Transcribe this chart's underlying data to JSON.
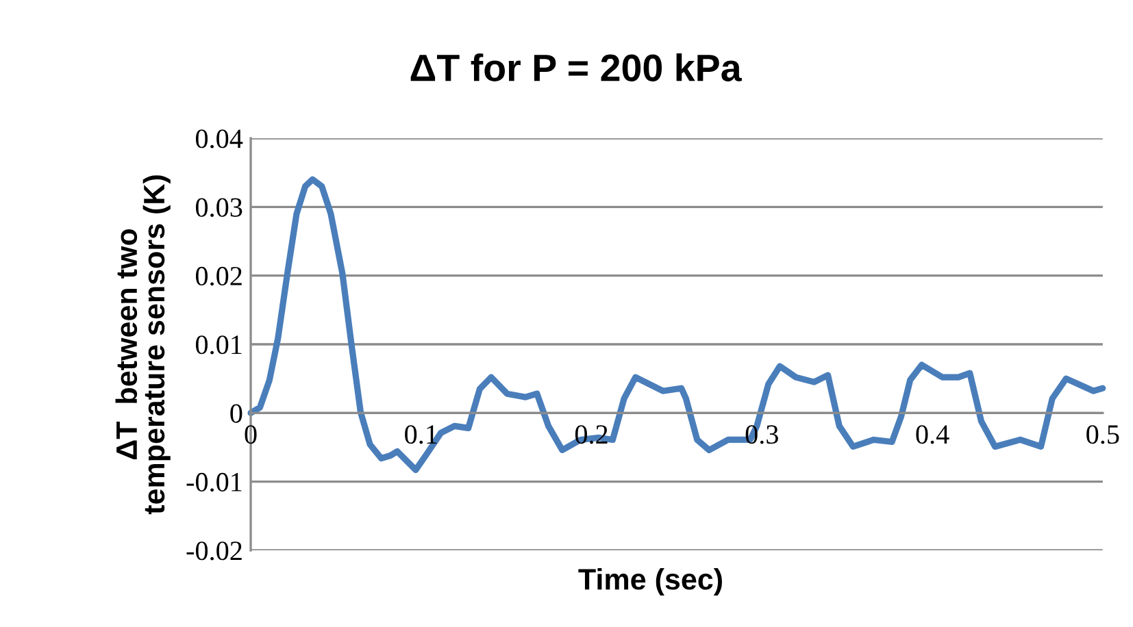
{
  "chart_data": {
    "type": "line",
    "title": "ΔT for P = 200 kPa",
    "xlabel": "Time (sec)",
    "ylabel": "ΔT  between two\ntemperature sensors (K)",
    "xlim": [
      0,
      0.5
    ],
    "xticks": [
      0,
      0.1,
      0.2,
      0.3,
      0.4,
      0.5
    ],
    "ylim": [
      -0.02,
      0.04
    ],
    "yticks": [
      -0.02,
      -0.01,
      0,
      0.01,
      0.02,
      0.03,
      0.04
    ],
    "grid": "y",
    "series": [
      {
        "color": "#4a7ebb",
        "x": [
          0,
          0.0054,
          0.011,
          0.016,
          0.0215,
          0.0269,
          0.032,
          0.0363,
          0.0417,
          0.047,
          0.0538,
          0.059,
          0.0645,
          0.07,
          0.0766,
          0.082,
          0.086,
          0.09,
          0.0968,
          0.1035,
          0.1116,
          0.1196,
          0.1277,
          0.1344,
          0.1411,
          0.1505,
          0.1613,
          0.168,
          0.1747,
          0.1828,
          0.1935,
          0.2043,
          0.2124,
          0.2191,
          0.2258,
          0.2419,
          0.2527,
          0.2554,
          0.262,
          0.269,
          0.2801,
          0.2931,
          0.297,
          0.3038,
          0.3105,
          0.3199,
          0.3306,
          0.3387,
          0.3454,
          0.3535,
          0.3656,
          0.3763,
          0.3817,
          0.387,
          0.3938,
          0.4059,
          0.4153,
          0.422,
          0.4287,
          0.4368,
          0.4516,
          0.4637,
          0.4704,
          0.4785,
          0.4946,
          0.5
        ],
        "values": [
          0,
          0.0008,
          0.0048,
          0.0109,
          0.0203,
          0.029,
          0.033,
          0.034,
          0.033,
          0.029,
          0.0203,
          0.0102,
          0.0001,
          -0.0046,
          -0.0066,
          -0.0062,
          -0.0056,
          -0.0066,
          -0.0083,
          -0.0059,
          -0.0029,
          -0.0019,
          -0.0022,
          0.0035,
          0.0052,
          0.0028,
          0.0023,
          0.0028,
          -0.0019,
          -0.0054,
          -0.0039,
          -0.0036,
          -0.0039,
          0.0021,
          0.0052,
          0.0032,
          0.0036,
          0.0021,
          -0.0039,
          -0.0054,
          -0.0039,
          -0.0039,
          -0.0019,
          0.0042,
          0.0068,
          0.0052,
          0.0045,
          0.0055,
          -0.0019,
          -0.0049,
          -0.0039,
          -0.0042,
          -0.0005,
          0.0048,
          0.007,
          0.0052,
          0.0052,
          0.0058,
          -0.0012,
          -0.0049,
          -0.0039,
          -0.0049,
          0.0021,
          0.005,
          0.0032,
          0.0036
        ]
      }
    ]
  }
}
